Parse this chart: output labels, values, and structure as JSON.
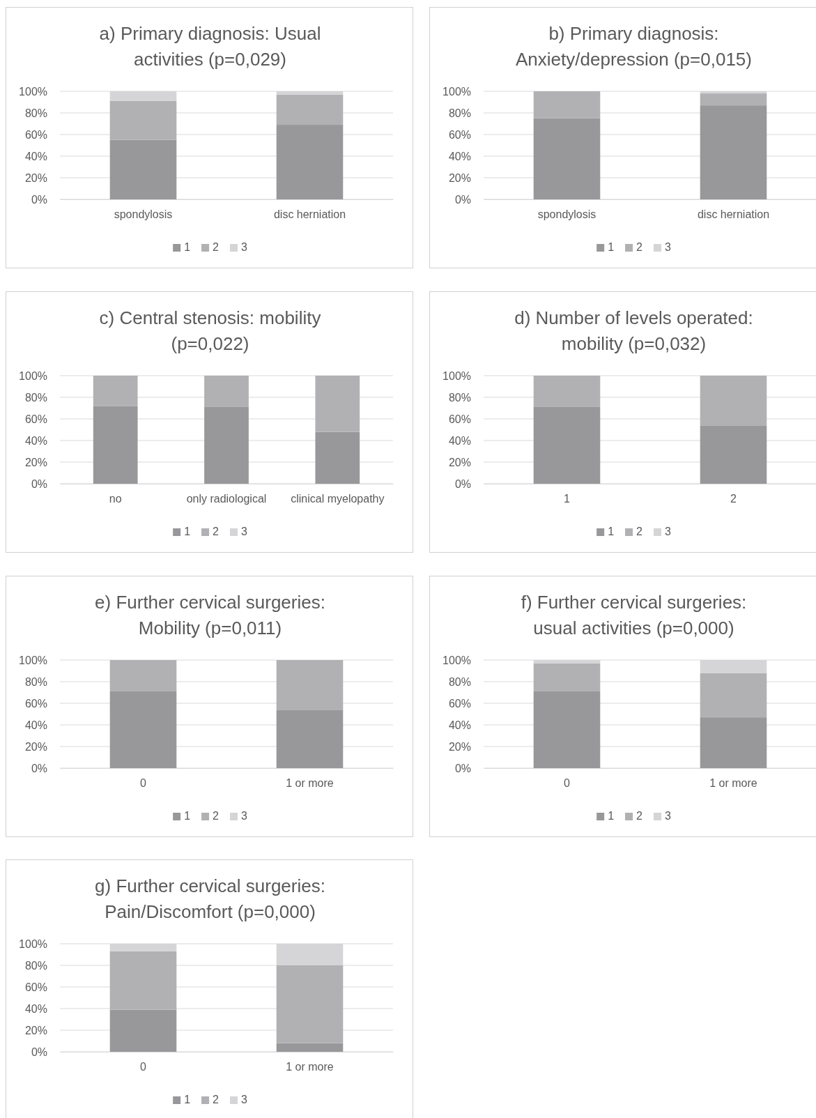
{
  "chart_data": [
    {
      "type": "bar",
      "title": "a) Primary diagnosis: Usual activities (p=0,029)",
      "categories": [
        "spondylosis",
        "disc herniation"
      ],
      "stacked": true,
      "ylim": [
        0,
        100
      ],
      "yticks": [
        {
          "value": 0,
          "label": "0%"
        },
        {
          "value": 20,
          "label": "20%"
        },
        {
          "value": 40,
          "label": "40%"
        },
        {
          "value": 60,
          "label": "60%"
        },
        {
          "value": 80,
          "label": "80%"
        },
        {
          "value": 100,
          "label": "100%"
        }
      ],
      "grid": "y",
      "legend": "bottom",
      "series": [
        {
          "name": "1",
          "color": "#98989b",
          "values": [
            55,
            69
          ]
        },
        {
          "name": "2",
          "color": "#b1b1b4",
          "values": [
            36,
            28
          ]
        },
        {
          "name": "3",
          "color": "#d5d5d7",
          "values": [
            9,
            3
          ]
        }
      ]
    },
    {
      "type": "bar",
      "title": "b) Primary diagnosis: Anxiety/depression (p=0,015)",
      "categories": [
        "spondylosis",
        "disc herniation"
      ],
      "stacked": true,
      "ylim": [
        0,
        100
      ],
      "yticks": [
        {
          "value": 0,
          "label": "0%"
        },
        {
          "value": 20,
          "label": "20%"
        },
        {
          "value": 40,
          "label": "40%"
        },
        {
          "value": 60,
          "label": "60%"
        },
        {
          "value": 80,
          "label": "80%"
        },
        {
          "value": 100,
          "label": "100%"
        }
      ],
      "grid": "y",
      "legend": "bottom",
      "series": [
        {
          "name": "1",
          "color": "#98989b",
          "values": [
            75,
            87
          ]
        },
        {
          "name": "2",
          "color": "#b1b1b4",
          "values": [
            25,
            11
          ]
        },
        {
          "name": "3",
          "color": "#d5d5d7",
          "values": [
            0,
            2
          ]
        }
      ]
    },
    {
      "type": "bar",
      "title": "c) Central stenosis: mobility (p=0,022)",
      "categories": [
        "no",
        "only radiological",
        "clinical myelopathy"
      ],
      "stacked": true,
      "ylim": [
        0,
        100
      ],
      "yticks": [
        {
          "value": 0,
          "label": "0%"
        },
        {
          "value": 20,
          "label": "20%"
        },
        {
          "value": 40,
          "label": "40%"
        },
        {
          "value": 60,
          "label": "60%"
        },
        {
          "value": 80,
          "label": "80%"
        },
        {
          "value": 100,
          "label": "100%"
        }
      ],
      "grid": "y",
      "legend": "bottom",
      "series": [
        {
          "name": "1",
          "color": "#98989b",
          "values": [
            72,
            71,
            48
          ]
        },
        {
          "name": "2",
          "color": "#b1b1b4",
          "values": [
            28,
            29,
            52
          ]
        },
        {
          "name": "3",
          "color": "#d5d5d7",
          "values": [
            0,
            0,
            0
          ]
        }
      ]
    },
    {
      "type": "bar",
      "title": "d) Number of levels operated: mobility (p=0,032)",
      "categories": [
        "1",
        "2"
      ],
      "stacked": true,
      "ylim": [
        0,
        100
      ],
      "yticks": [
        {
          "value": 0,
          "label": "0%"
        },
        {
          "value": 20,
          "label": "20%"
        },
        {
          "value": 40,
          "label": "40%"
        },
        {
          "value": 60,
          "label": "60%"
        },
        {
          "value": 80,
          "label": "80%"
        },
        {
          "value": 100,
          "label": "100%"
        }
      ],
      "grid": "y",
      "legend": "bottom",
      "series": [
        {
          "name": "1",
          "color": "#98989b",
          "values": [
            71,
            54
          ]
        },
        {
          "name": "2",
          "color": "#b1b1b4",
          "values": [
            29,
            46
          ]
        },
        {
          "name": "3",
          "color": "#d5d5d7",
          "values": [
            0,
            0
          ]
        }
      ]
    },
    {
      "type": "bar",
      "title": "e) Further cervical surgeries: Mobility (p=0,011)",
      "categories": [
        "0",
        "1 or more"
      ],
      "stacked": true,
      "ylim": [
        0,
        100
      ],
      "yticks": [
        {
          "value": 0,
          "label": "0%"
        },
        {
          "value": 20,
          "label": "20%"
        },
        {
          "value": 40,
          "label": "40%"
        },
        {
          "value": 60,
          "label": "60%"
        },
        {
          "value": 80,
          "label": "80%"
        },
        {
          "value": 100,
          "label": "100%"
        }
      ],
      "grid": "y",
      "legend": "bottom",
      "series": [
        {
          "name": "1",
          "color": "#98989b",
          "values": [
            71,
            54
          ]
        },
        {
          "name": "2",
          "color": "#b1b1b4",
          "values": [
            29,
            46
          ]
        },
        {
          "name": "3",
          "color": "#d5d5d7",
          "values": [
            0,
            0
          ]
        }
      ]
    },
    {
      "type": "bar",
      "title": "f) Further cervical surgeries: usual activities (p=0,000)",
      "categories": [
        "0",
        "1 or more"
      ],
      "stacked": true,
      "ylim": [
        0,
        100
      ],
      "yticks": [
        {
          "value": 0,
          "label": "0%"
        },
        {
          "value": 20,
          "label": "20%"
        },
        {
          "value": 40,
          "label": "40%"
        },
        {
          "value": 60,
          "label": "60%"
        },
        {
          "value": 80,
          "label": "80%"
        },
        {
          "value": 100,
          "label": "100%"
        }
      ],
      "grid": "y",
      "legend": "bottom",
      "series": [
        {
          "name": "1",
          "color": "#98989b",
          "values": [
            71,
            47
          ]
        },
        {
          "name": "2",
          "color": "#b1b1b4",
          "values": [
            26,
            41
          ]
        },
        {
          "name": "3",
          "color": "#d5d5d7",
          "values": [
            3,
            12
          ]
        }
      ]
    },
    {
      "type": "bar",
      "title": "g) Further cervical surgeries: Pain/Discomfort (p=0,000)",
      "categories": [
        "0",
        "1 or more"
      ],
      "stacked": true,
      "ylim": [
        0,
        100
      ],
      "yticks": [
        {
          "value": 0,
          "label": "0%"
        },
        {
          "value": 20,
          "label": "20%"
        },
        {
          "value": 40,
          "label": "40%"
        },
        {
          "value": 60,
          "label": "60%"
        },
        {
          "value": 80,
          "label": "80%"
        },
        {
          "value": 100,
          "label": "100%"
        }
      ],
      "grid": "y",
      "legend": "bottom",
      "series": [
        {
          "name": "1",
          "color": "#98989b",
          "values": [
            39,
            8
          ]
        },
        {
          "name": "2",
          "color": "#b1b1b4",
          "values": [
            54,
            72
          ]
        },
        {
          "name": "3",
          "color": "#d5d5d7",
          "values": [
            7,
            20
          ]
        }
      ]
    }
  ]
}
